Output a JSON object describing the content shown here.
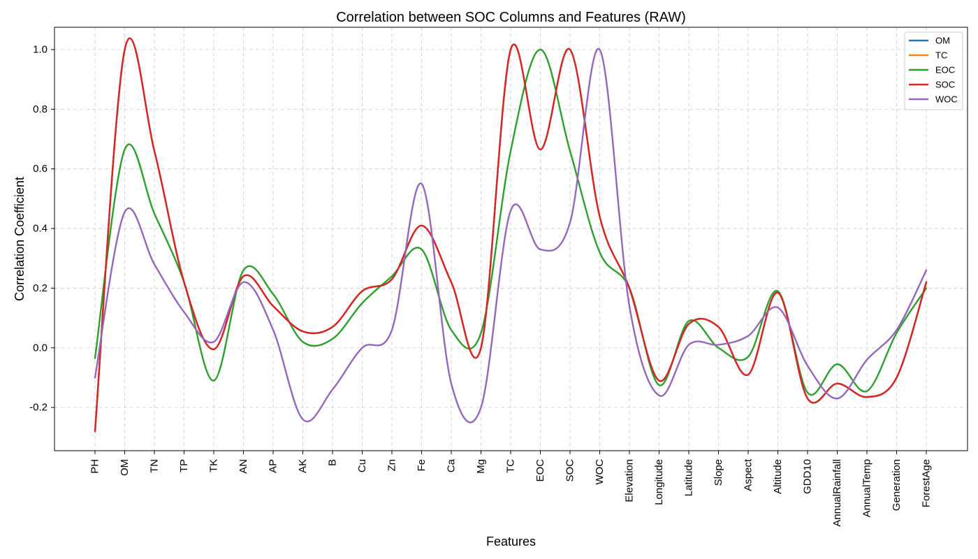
{
  "chart_data": {
    "type": "line",
    "title": "Correlation between SOC Columns and Features (RAW)",
    "xlabel": "Features",
    "ylabel": "Correlation Coefficient",
    "ylim": [
      -0.345,
      1.075
    ],
    "yticks": [
      -0.2,
      0.0,
      0.2,
      0.4,
      0.6,
      0.8,
      1.0
    ],
    "ytick_labels": [
      "-0.2",
      "0.0",
      "0.2",
      "0.4",
      "0.6",
      "0.8",
      "1.0"
    ],
    "grid": true,
    "legend_position": "top-right",
    "categories": [
      "PH",
      "OM",
      "TN",
      "TP",
      "TK",
      "AN",
      "AP",
      "AK",
      "B",
      "Cu",
      "Zn",
      "Fe",
      "Ca",
      "Mg",
      "TC",
      "EOC",
      "SOC",
      "WOC",
      "Elevation",
      "Longitude",
      "Latitude",
      "Slope",
      "Aspect",
      "Altitude",
      "GDD10",
      "AnnualRainfall",
      "AnnualTemp",
      "Generation",
      "ForestAge"
    ],
    "series": [
      {
        "name": "OM",
        "color": "#1f77b4",
        "values": [
          -0.28,
          1.0,
          0.66,
          0.22,
          -0.005,
          0.24,
          0.14,
          0.055,
          0.07,
          0.19,
          0.23,
          0.41,
          0.22,
          0.0,
          1.0,
          0.665,
          1.0,
          0.44,
          0.2,
          -0.11,
          0.08,
          0.07,
          -0.09,
          0.185,
          -0.17,
          -0.12,
          -0.165,
          -0.1,
          0.22
        ]
      },
      {
        "name": "TC",
        "color": "#ff7f0e",
        "values": [
          -0.28,
          1.0,
          0.66,
          0.22,
          -0.005,
          0.24,
          0.14,
          0.055,
          0.07,
          0.19,
          0.23,
          0.41,
          0.22,
          0.0,
          1.0,
          0.665,
          1.0,
          0.44,
          0.2,
          -0.11,
          0.08,
          0.07,
          -0.09,
          0.185,
          -0.17,
          -0.12,
          -0.165,
          -0.1,
          0.22
        ]
      },
      {
        "name": "EOC",
        "color": "#2ca02c",
        "values": [
          -0.035,
          0.665,
          0.45,
          0.22,
          -0.11,
          0.26,
          0.18,
          0.02,
          0.03,
          0.15,
          0.24,
          0.33,
          0.06,
          0.05,
          0.66,
          1.0,
          0.66,
          0.32,
          0.2,
          -0.125,
          0.09,
          0.0,
          -0.03,
          0.19,
          -0.15,
          -0.055,
          -0.145,
          0.05,
          0.2
        ]
      },
      {
        "name": "SOC",
        "color": "#d62728",
        "values": [
          -0.28,
          1.0,
          0.66,
          0.22,
          -0.005,
          0.24,
          0.14,
          0.055,
          0.07,
          0.19,
          0.23,
          0.41,
          0.22,
          0.0,
          1.0,
          0.665,
          1.0,
          0.44,
          0.2,
          -0.11,
          0.08,
          0.07,
          -0.09,
          0.185,
          -0.17,
          -0.12,
          -0.165,
          -0.1,
          0.22
        ]
      },
      {
        "name": "WOC",
        "color": "#9467bd",
        "values": [
          -0.1,
          0.455,
          0.28,
          0.12,
          0.02,
          0.22,
          0.06,
          -0.24,
          -0.14,
          0.0,
          0.06,
          0.55,
          -0.12,
          -0.2,
          0.46,
          0.33,
          0.42,
          1.0,
          0.14,
          -0.16,
          0.01,
          0.01,
          0.04,
          0.135,
          -0.06,
          -0.17,
          -0.04,
          0.06,
          0.26
        ]
      }
    ]
  }
}
